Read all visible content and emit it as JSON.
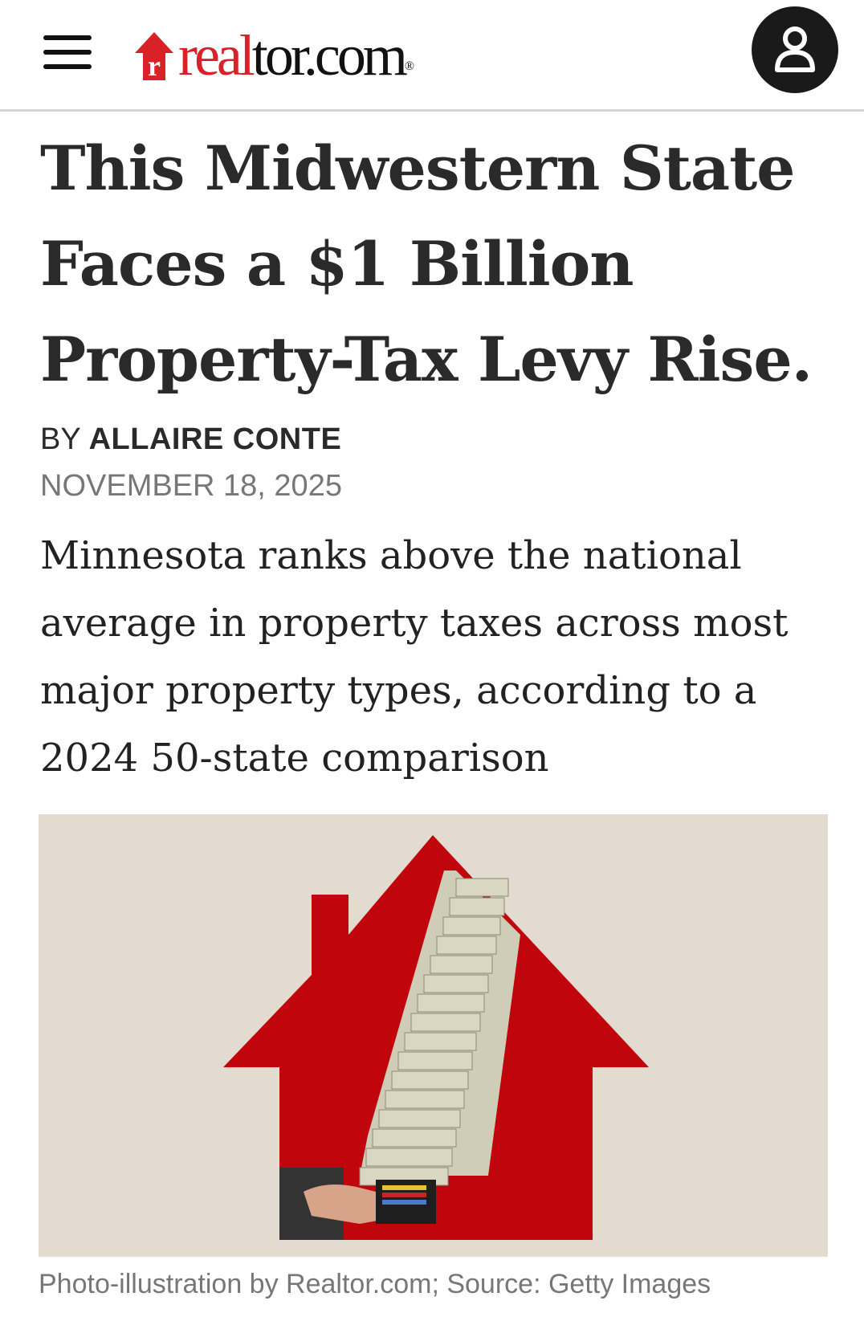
{
  "header": {
    "menu_icon": "hamburger-icon",
    "logo": {
      "part1": "real",
      "part2": "tor.com",
      "reg": "®"
    },
    "account_icon": "user-icon"
  },
  "article": {
    "title": "This Midwestern State Faces a $1 Billion Property-Tax Levy Rise.",
    "byline_prefix": "BY",
    "author": "ALLAIRE CONTE",
    "date": "NOVEMBER 18, 2025",
    "summary": "Minnesota ranks above the national average in property taxes across most major property types, according to a 2024 50-state comparison",
    "image_caption": "Photo-illustration by Realtor.com; Source: Getty Images"
  },
  "colors": {
    "brand_red": "#d92228",
    "house_red": "#c1050c",
    "background_paper": "#e3dbcf"
  }
}
